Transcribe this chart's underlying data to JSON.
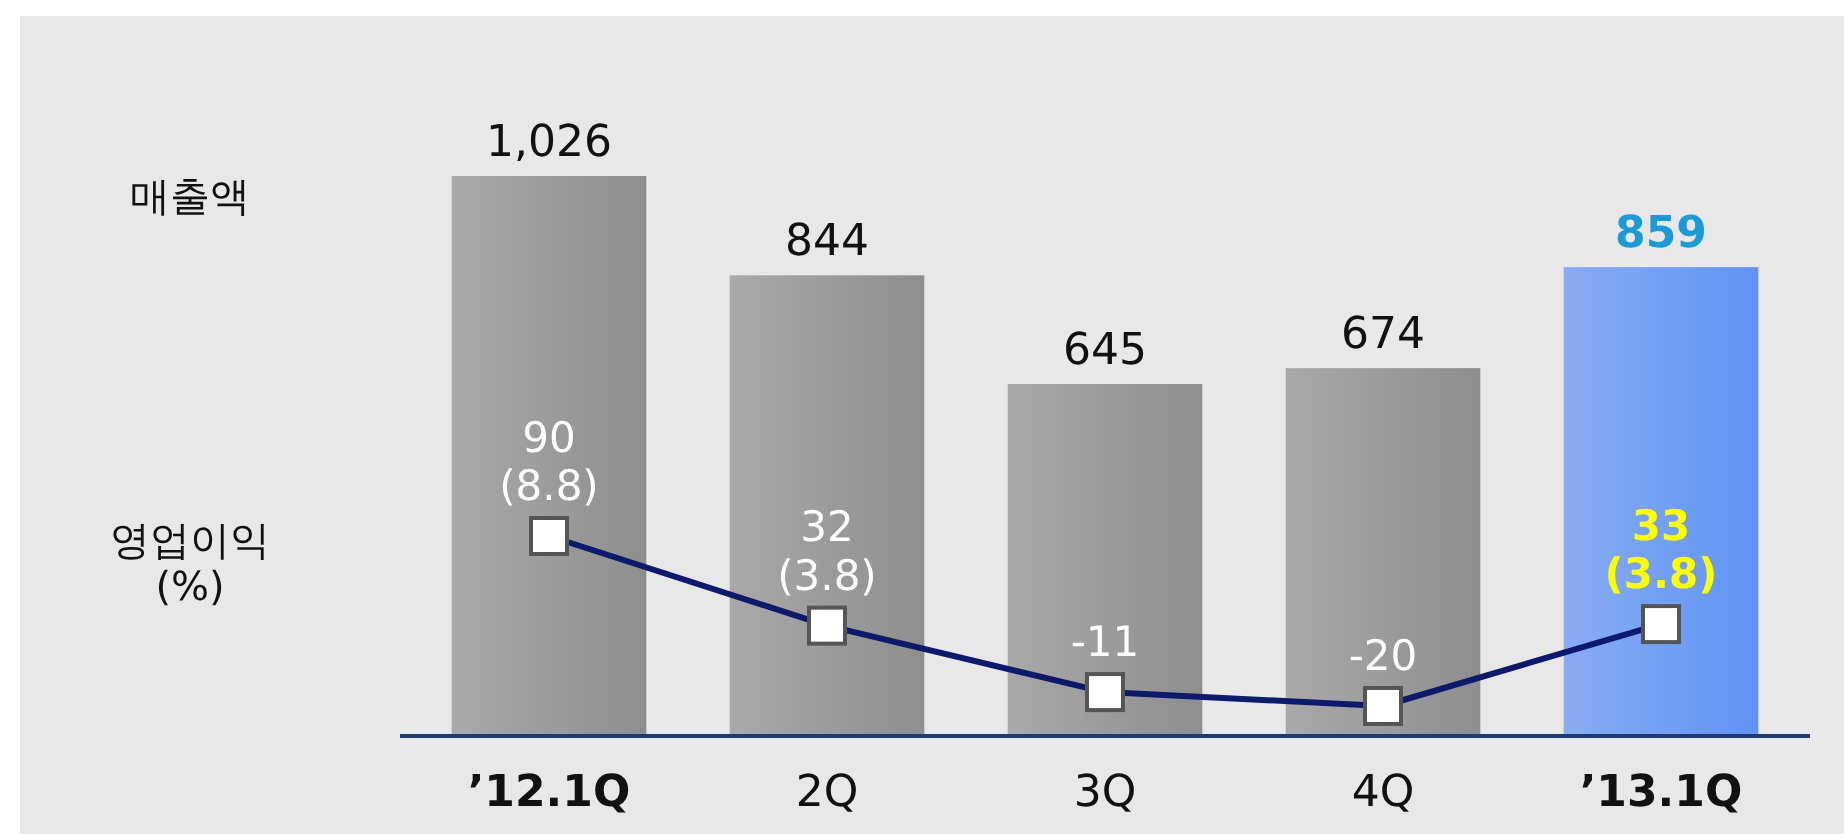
{
  "chart_data": {
    "type": "bar",
    "categories": [
      "’12.1Q",
      "2Q",
      "3Q",
      "4Q",
      "’13.1Q"
    ],
    "annotations": [
      "매출액",
      "영업이익\n(%)"
    ],
    "series": [
      {
        "name": null,
        "colors": [
          "#8e8e8e",
          "#8e8e8e",
          "#8e8e8e",
          "#8e8e8e",
          "#5f93f5"
        ],
        "values": [
          1026,
          844,
          645,
          674,
          859
        ],
        "value_labels": [
          "1,026",
          "844",
          "645",
          "674",
          "859"
        ]
      },
      {
        "name": null,
        "type": "line",
        "axis": "y2",
        "color": "#0d1a6b",
        "marker": "square",
        "values": [
          90,
          32,
          -11,
          -20,
          33
        ],
        "value_labels": [
          "90\n(8.8)",
          "32\n(3.8)",
          "-11",
          "-20",
          "33\n(3.8)"
        ]
      }
    ]
  }
}
